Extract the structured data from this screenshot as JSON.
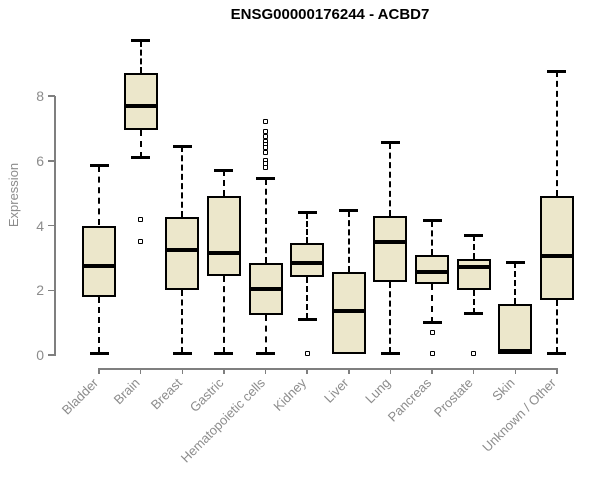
{
  "title": "ENSG00000176244 - ACBD7",
  "chart_data": {
    "type": "boxplot",
    "title": "ENSG00000176244 - ACBD7",
    "xlabel": "",
    "ylabel": "Expression",
    "y_ticks": [
      0,
      2,
      4,
      6,
      8
    ],
    "ylim": [
      0,
      9.9
    ],
    "grid": false,
    "legend": false,
    "categories": [
      "Bladder",
      "Brain",
      "Breast",
      "Gastric",
      "Hematopoietic cells",
      "Kidney",
      "Liver",
      "Lung",
      "Pancreas",
      "Prostate",
      "Skin",
      "Unknown / Other"
    ],
    "boxes": [
      {
        "category": "Bladder",
        "low": 0.05,
        "q1": 1.8,
        "median": 2.75,
        "q3": 4.0,
        "high": 5.85,
        "outliers": []
      },
      {
        "category": "Brain",
        "low": 6.1,
        "q1": 6.95,
        "median": 7.7,
        "q3": 8.7,
        "high": 9.7,
        "outliers": [
          4.2,
          3.5
        ]
      },
      {
        "category": "Breast",
        "low": 0.05,
        "q1": 2.0,
        "median": 3.25,
        "q3": 4.25,
        "high": 6.45,
        "outliers": []
      },
      {
        "category": "Gastric",
        "low": 0.05,
        "q1": 2.45,
        "median": 3.15,
        "q3": 4.9,
        "high": 5.7,
        "outliers": []
      },
      {
        "category": "Hematopoietic cells",
        "low": 0.05,
        "q1": 1.25,
        "median": 2.05,
        "q3": 2.85,
        "high": 5.45,
        "outliers": [
          7.2,
          6.9,
          6.75,
          6.6,
          6.5,
          6.4,
          6.25,
          6.0,
          5.9,
          5.8
        ]
      },
      {
        "category": "Kidney",
        "low": 1.1,
        "q1": 2.4,
        "median": 2.85,
        "q3": 3.45,
        "high": 4.4,
        "outliers": [
          0.05
        ]
      },
      {
        "category": "Liver",
        "low": 0.02,
        "q1": 0.02,
        "median": 1.35,
        "q3": 2.55,
        "high": 4.45,
        "outliers": []
      },
      {
        "category": "Lung",
        "low": 0.05,
        "q1": 2.25,
        "median": 3.5,
        "q3": 4.3,
        "high": 6.55,
        "outliers": []
      },
      {
        "category": "Pancreas",
        "low": 1.0,
        "q1": 2.2,
        "median": 2.55,
        "q3": 3.08,
        "high": 4.15,
        "outliers": [
          0.7,
          0.05
        ]
      },
      {
        "category": "Prostate",
        "low": 1.27,
        "q1": 2.0,
        "median": 2.72,
        "q3": 2.97,
        "high": 3.7,
        "outliers": [
          0.05
        ]
      },
      {
        "category": "Skin",
        "low": 0.02,
        "q1": 0.02,
        "median": 0.12,
        "q3": 1.57,
        "high": 2.87,
        "outliers": []
      },
      {
        "category": "Unknown / Other",
        "low": 0.05,
        "q1": 1.7,
        "median": 3.05,
        "q3": 4.9,
        "high": 8.77,
        "outliers": []
      }
    ],
    "colors": {
      "box_fill": "#ece7cb",
      "box_border": "#000000",
      "median": "#000000",
      "whisker": "#000000",
      "axis": "#7f7f7f",
      "tick_label": "#8c8c8c",
      "title": "#000000"
    }
  }
}
